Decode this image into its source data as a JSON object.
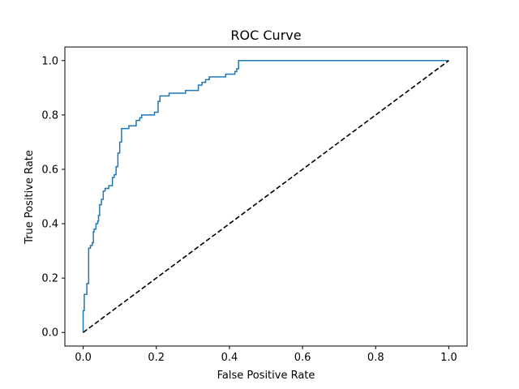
{
  "chart_data": {
    "type": "line",
    "title": "ROC Curve",
    "xlabel": "False Positive Rate",
    "ylabel": "True Positive Rate",
    "xlim": [
      -0.05,
      1.05
    ],
    "ylim": [
      -0.05,
      1.05
    ],
    "x_ticks": [
      "0.0",
      "0.2",
      "0.4",
      "0.6",
      "0.8",
      "1.0"
    ],
    "y_ticks": [
      "0.0",
      "0.2",
      "0.4",
      "0.6",
      "0.8",
      "1.0"
    ],
    "x_tick_values": [
      0,
      0.2,
      0.4,
      0.6,
      0.8,
      1.0
    ],
    "y_tick_values": [
      0,
      0.2,
      0.4,
      0.6,
      0.8,
      1.0
    ],
    "grid": false,
    "legend": "none",
    "series": [
      {
        "role": "roc-curve",
        "color": "#1f77b4",
        "style": "solid",
        "points": [
          [
            0.0,
            0.0
          ],
          [
            0.0,
            0.08
          ],
          [
            0.003,
            0.08
          ],
          [
            0.003,
            0.14
          ],
          [
            0.01,
            0.14
          ],
          [
            0.01,
            0.18
          ],
          [
            0.015,
            0.18
          ],
          [
            0.015,
            0.31
          ],
          [
            0.02,
            0.31
          ],
          [
            0.02,
            0.32
          ],
          [
            0.025,
            0.32
          ],
          [
            0.025,
            0.33
          ],
          [
            0.028,
            0.33
          ],
          [
            0.028,
            0.37
          ],
          [
            0.03,
            0.37
          ],
          [
            0.03,
            0.38
          ],
          [
            0.035,
            0.38
          ],
          [
            0.035,
            0.4
          ],
          [
            0.04,
            0.4
          ],
          [
            0.04,
            0.41
          ],
          [
            0.042,
            0.41
          ],
          [
            0.042,
            0.43
          ],
          [
            0.045,
            0.43
          ],
          [
            0.045,
            0.47
          ],
          [
            0.05,
            0.47
          ],
          [
            0.05,
            0.49
          ],
          [
            0.055,
            0.49
          ],
          [
            0.055,
            0.52
          ],
          [
            0.06,
            0.52
          ],
          [
            0.06,
            0.53
          ],
          [
            0.07,
            0.53
          ],
          [
            0.07,
            0.54
          ],
          [
            0.08,
            0.54
          ],
          [
            0.08,
            0.57
          ],
          [
            0.085,
            0.57
          ],
          [
            0.085,
            0.58
          ],
          [
            0.09,
            0.58
          ],
          [
            0.09,
            0.61
          ],
          [
            0.095,
            0.61
          ],
          [
            0.095,
            0.66
          ],
          [
            0.1,
            0.66
          ],
          [
            0.1,
            0.7
          ],
          [
            0.105,
            0.7
          ],
          [
            0.105,
            0.75
          ],
          [
            0.125,
            0.75
          ],
          [
            0.125,
            0.76
          ],
          [
            0.145,
            0.76
          ],
          [
            0.145,
            0.78
          ],
          [
            0.155,
            0.78
          ],
          [
            0.155,
            0.79
          ],
          [
            0.16,
            0.79
          ],
          [
            0.16,
            0.8
          ],
          [
            0.195,
            0.8
          ],
          [
            0.195,
            0.81
          ],
          [
            0.205,
            0.81
          ],
          [
            0.205,
            0.85
          ],
          [
            0.21,
            0.85
          ],
          [
            0.21,
            0.87
          ],
          [
            0.235,
            0.87
          ],
          [
            0.235,
            0.88
          ],
          [
            0.28,
            0.88
          ],
          [
            0.28,
            0.89
          ],
          [
            0.315,
            0.89
          ],
          [
            0.315,
            0.91
          ],
          [
            0.325,
            0.91
          ],
          [
            0.325,
            0.92
          ],
          [
            0.335,
            0.92
          ],
          [
            0.335,
            0.93
          ],
          [
            0.345,
            0.93
          ],
          [
            0.345,
            0.94
          ],
          [
            0.39,
            0.94
          ],
          [
            0.39,
            0.95
          ],
          [
            0.415,
            0.95
          ],
          [
            0.415,
            0.96
          ],
          [
            0.42,
            0.96
          ],
          [
            0.42,
            0.97
          ],
          [
            0.425,
            0.97
          ],
          [
            0.425,
            1.0
          ],
          [
            1.0,
            1.0
          ]
        ]
      },
      {
        "role": "chance-diagonal",
        "color": "#000000",
        "style": "dashed",
        "points": [
          [
            0,
            0
          ],
          [
            1,
            1
          ]
        ]
      }
    ]
  }
}
